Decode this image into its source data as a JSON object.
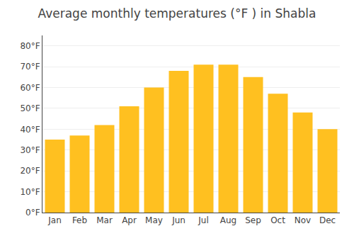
{
  "chart_data": {
    "type": "bar",
    "title": "Average monthly temperatures (°F ) in Shabla",
    "categories": [
      "Jan",
      "Feb",
      "Mar",
      "Apr",
      "May",
      "Jun",
      "Jul",
      "Aug",
      "Sep",
      "Oct",
      "Nov",
      "Dec"
    ],
    "values": [
      35,
      37,
      42,
      51,
      60,
      68,
      71,
      71,
      65,
      57,
      48,
      40
    ],
    "color": "#FFC020",
    "ylim": [
      0,
      85
    ],
    "yticks": [
      {
        "value": 0,
        "label": "0°F"
      },
      {
        "value": 10,
        "label": "10°F"
      },
      {
        "value": 20,
        "label": "20°F"
      },
      {
        "value": 30,
        "label": "30°F"
      },
      {
        "value": 40,
        "label": "40°F"
      },
      {
        "value": 50,
        "label": "50°F"
      },
      {
        "value": 60,
        "label": "60°F"
      },
      {
        "value": 70,
        "label": "70°F"
      },
      {
        "value": 80,
        "label": "80°F"
      }
    ],
    "grid": true
  }
}
